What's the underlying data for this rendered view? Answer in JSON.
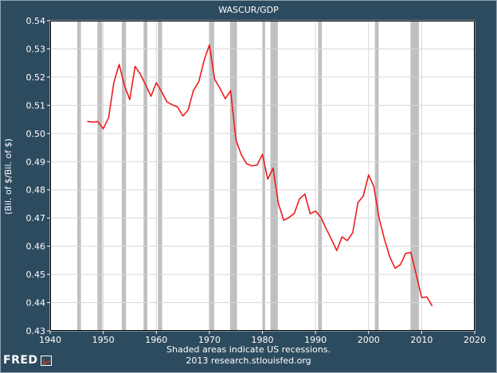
{
  "chart_data": {
    "type": "line",
    "title": "WASCUR/GDP",
    "ylabel": "(Bil. of $/Bil. of $)",
    "xlabel": "",
    "xlim": [
      1940,
      2020
    ],
    "ylim": [
      0.43,
      0.54
    ],
    "x_ticks": [
      1940,
      1950,
      1960,
      1970,
      1980,
      1990,
      2000,
      2010,
      2020
    ],
    "y_ticks": [
      0.43,
      0.44,
      0.45,
      0.46,
      0.47,
      0.48,
      0.49,
      0.5,
      0.51,
      0.52,
      0.53,
      0.54
    ],
    "grid": true,
    "line_color": "#ee1c1c",
    "recession_color": "#c0c0c0",
    "recessions": [
      [
        1945.1,
        1945.8
      ],
      [
        1948.9,
        1949.8
      ],
      [
        1953.5,
        1954.3
      ],
      [
        1957.6,
        1958.3
      ],
      [
        1960.3,
        1961.1
      ],
      [
        1969.9,
        1970.9
      ],
      [
        1973.9,
        1975.2
      ],
      [
        1980.0,
        1980.5
      ],
      [
        1981.5,
        1982.9
      ],
      [
        1990.5,
        1991.2
      ],
      [
        2001.2,
        2001.9
      ],
      [
        2007.9,
        2009.5
      ]
    ],
    "series": [
      {
        "x": [
          1947,
          1948,
          1949,
          1950,
          1951,
          1952,
          1953,
          1954,
          1955,
          1956,
          1957,
          1958,
          1959,
          1960,
          1961,
          1962,
          1963,
          1964,
          1965,
          1966,
          1967,
          1968,
          1969,
          1970,
          1971,
          1972,
          1973,
          1974,
          1975,
          1976,
          1977,
          1978,
          1979,
          1980,
          1981,
          1982,
          1983,
          1984,
          1985,
          1986,
          1987,
          1988,
          1989,
          1990,
          1991,
          1992,
          1993,
          1994,
          1995,
          1996,
          1997,
          1998,
          1999,
          2000,
          2001,
          2002,
          2003,
          2004,
          2005,
          2006,
          2007,
          2008,
          2009,
          2010,
          2011,
          2012
        ],
        "values": [
          0.5043,
          0.504,
          0.5042,
          0.5017,
          0.5055,
          0.518,
          0.5245,
          0.517,
          0.512,
          0.5238,
          0.521,
          0.5172,
          0.5132,
          0.518,
          0.5148,
          0.5112,
          0.5102,
          0.5094,
          0.5062,
          0.5083,
          0.5153,
          0.5183,
          0.5258,
          0.5314,
          0.5192,
          0.516,
          0.5123,
          0.5152,
          0.4978,
          0.4925,
          0.4893,
          0.4885,
          0.4888,
          0.4926,
          0.4838,
          0.4877,
          0.4752,
          0.4692,
          0.4702,
          0.4717,
          0.4768,
          0.4785,
          0.4715,
          0.4725,
          0.4703,
          0.4663,
          0.4625,
          0.4585,
          0.4633,
          0.462,
          0.4648,
          0.4755,
          0.4778,
          0.4853,
          0.4812,
          0.4698,
          0.4625,
          0.4562,
          0.4522,
          0.4535,
          0.4575,
          0.4578,
          0.4498,
          0.4418,
          0.442,
          0.4388
        ]
      }
    ]
  },
  "footer": {
    "note": "Shaded areas indicate US recessions.",
    "source": "2013 research.stlouisfed.org"
  },
  "logo": {
    "text": "FRED"
  }
}
